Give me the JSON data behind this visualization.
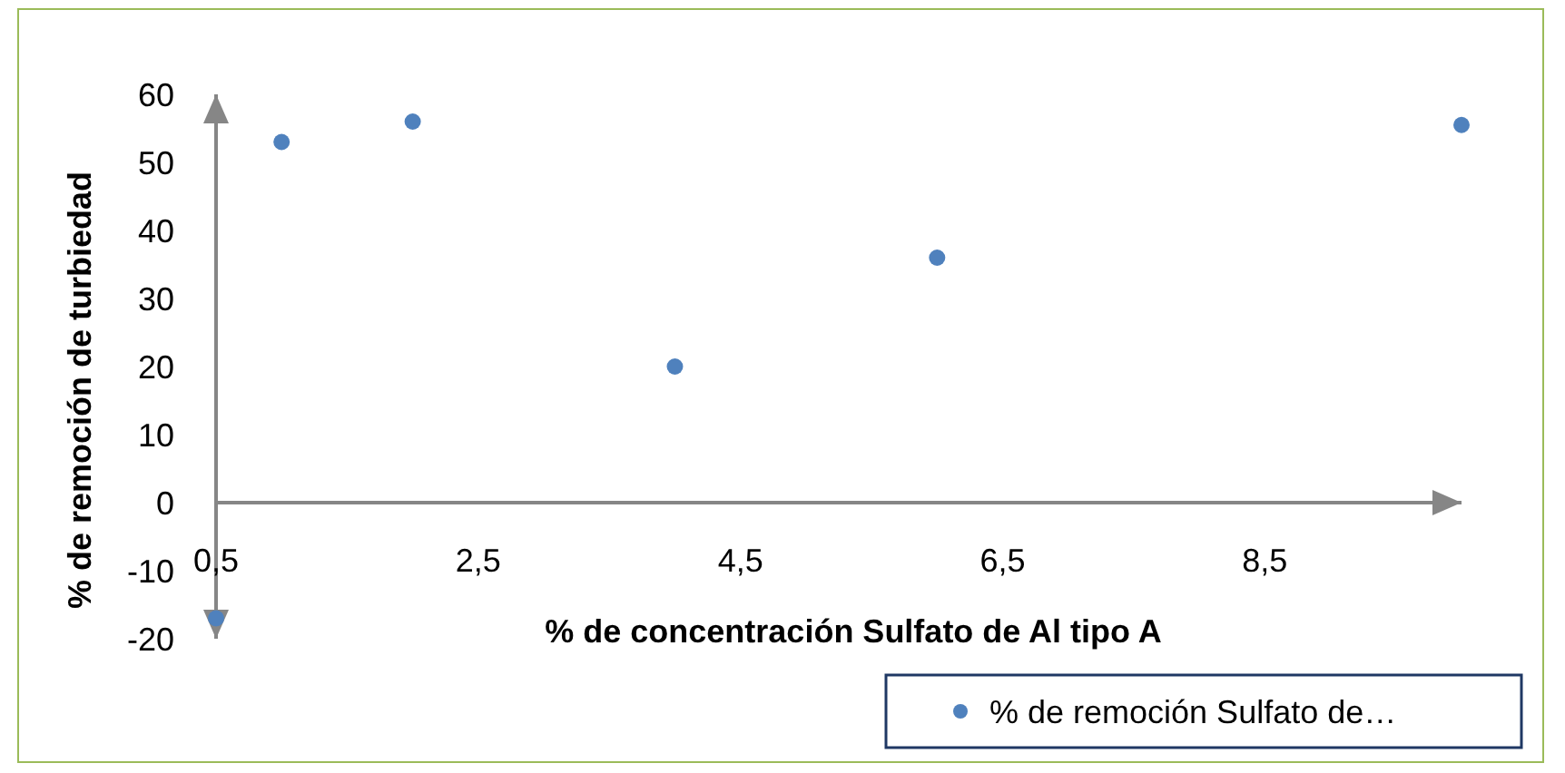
{
  "chart_data": {
    "type": "scatter",
    "xlabel": "% de concentración Sulfato de Al tipo A",
    "ylabel": "% de remoción de turbiedad",
    "x": [
      0.5,
      1,
      2,
      4,
      6,
      10
    ],
    "series": [
      {
        "name": "% de remoción Sulfato de…",
        "color": "#4f81bd",
        "values": [
          -17,
          53,
          56,
          20,
          36,
          55.5
        ]
      }
    ],
    "xlim": [
      0.5,
      10
    ],
    "ylim": [
      -20,
      60
    ],
    "xticks": [
      {
        "value": 0.5,
        "label": "0,5"
      },
      {
        "value": 2.5,
        "label": "2,5"
      },
      {
        "value": 4.5,
        "label": "4,5"
      },
      {
        "value": 6.5,
        "label": "6,5"
      },
      {
        "value": 8.5,
        "label": "8,5"
      }
    ],
    "yticks": [
      -20,
      -10,
      0,
      10,
      20,
      30,
      40,
      50,
      60
    ],
    "grid": false,
    "legend": "bottom right",
    "marker": "circle"
  }
}
